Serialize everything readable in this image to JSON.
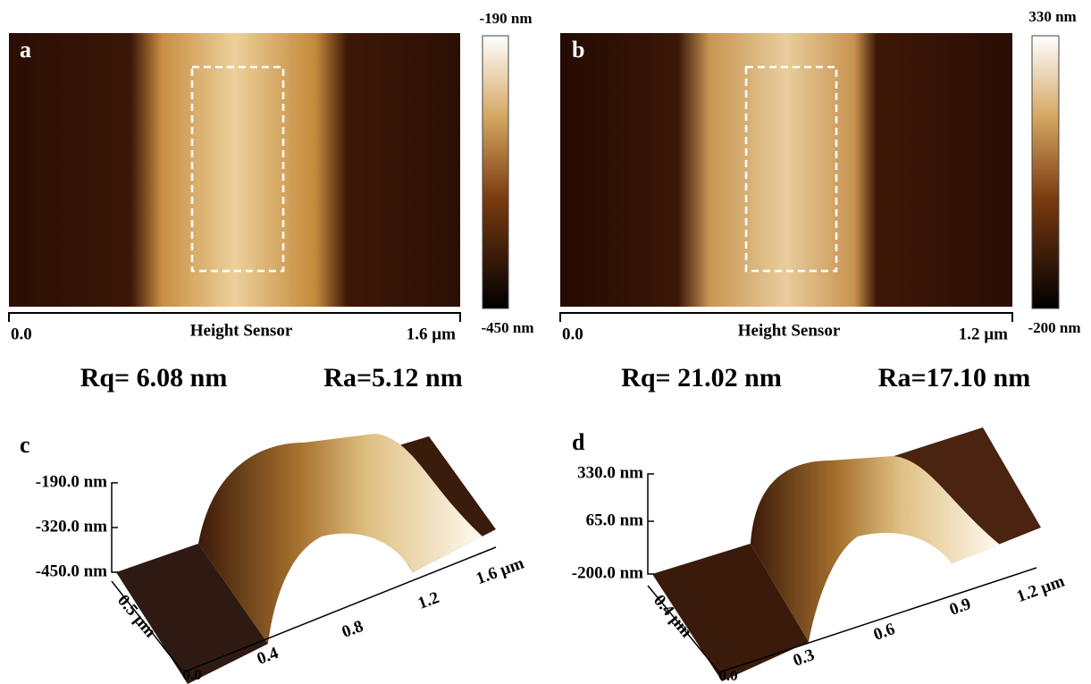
{
  "panels": [
    {
      "label": "a",
      "colorbar_max": "-190 nm",
      "colorbar_min": "-450 nm",
      "axis_start": "0.0",
      "axis_title": "Height Sensor",
      "axis_end": "1.6 µm",
      "rq": "Rq= 6.08 nm",
      "ra": "Ra=5.12 nm"
    },
    {
      "label": "b",
      "colorbar_max": "330 nm",
      "colorbar_min": "-200 nm",
      "axis_start": "0.0",
      "axis_title": "Height Sensor",
      "axis_end": "1.2 µm",
      "rq": "Rq= 21.02 nm",
      "ra": "Ra=17.10 nm"
    },
    {
      "label": "c",
      "z_labels": [
        "-190.0 nm",
        "-320.0 nm",
        "-450.0 nm"
      ],
      "y_label": "0.5 µm",
      "origin": "0.0",
      "x_labels": [
        "0.4",
        "0.8",
        "1.2",
        "1.6 µm"
      ]
    },
    {
      "label": "d",
      "z_labels": [
        "330.0 nm",
        "65.0 nm",
        "-200.0 nm"
      ],
      "y_label": "0.4 µm",
      "origin": "0.0",
      "x_labels": [
        "0.3",
        "0.6",
        "0.9",
        "1.2 µm"
      ]
    }
  ]
}
